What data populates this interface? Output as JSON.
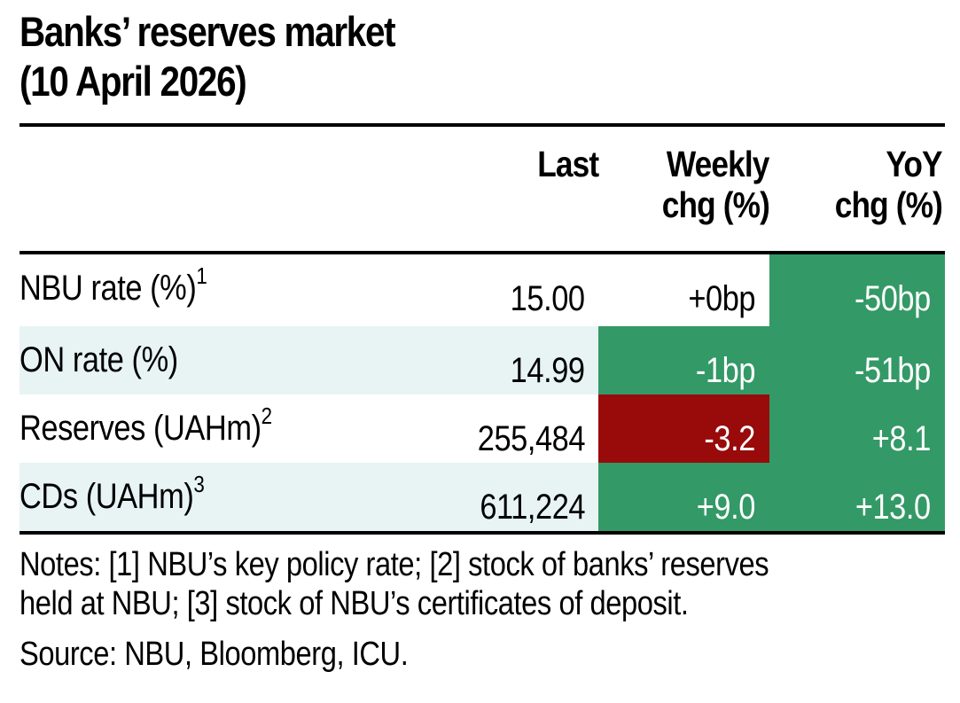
{
  "title": {
    "line1": "Banks’ reserves market",
    "line2": "(10 April 2026)"
  },
  "table": {
    "columns": [
      {
        "key": "label",
        "line1": "",
        "line2": ""
      },
      {
        "key": "last",
        "line1": "Last",
        "line2": ""
      },
      {
        "key": "weekly",
        "line1": "Weekly",
        "line2": "chg (%)"
      },
      {
        "key": "yoy",
        "line1": "YoY",
        "line2": "chg (%)"
      }
    ],
    "rows": [
      {
        "label": "NBU rate (%)",
        "note": "1",
        "last": "15.00",
        "weekly": "+0bp",
        "yoy": "-50bp",
        "weekly_status": "neutral",
        "yoy_status": "positive"
      },
      {
        "label": "ON rate (%)",
        "note": "",
        "last": "14.99",
        "weekly": "-1bp",
        "yoy": "-51bp",
        "weekly_status": "positive",
        "yoy_status": "positive"
      },
      {
        "label": "Reserves (UAHm)",
        "note": "2",
        "last": "255,484",
        "weekly": "-3.2",
        "yoy": "+8.1",
        "weekly_status": "negative",
        "yoy_status": "positive"
      },
      {
        "label": "CDs (UAHm)",
        "note": "3",
        "last": "611,224",
        "weekly": "+9.0",
        "yoy": "+13.0",
        "weekly_status": "positive",
        "yoy_status": "positive"
      }
    ]
  },
  "colors": {
    "positive": "#339966",
    "negative": "#990a0a",
    "stripe": "#e8f4f4"
  },
  "notes": {
    "line1": "Notes: [1] NBU’s key policy rate; [2] stock of banks’ reserves",
    "line2": "held at NBU; [3] stock of NBU’s certificates of deposit."
  },
  "source": "Source: NBU, Bloomberg, ICU."
}
